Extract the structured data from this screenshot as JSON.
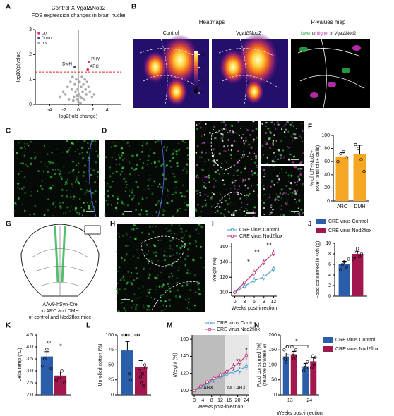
{
  "figure": {
    "panel_letters": [
      "A",
      "B",
      "C",
      "D",
      "E",
      "F",
      "G",
      "H",
      "I",
      "J",
      "K",
      "L",
      "M",
      "N"
    ],
    "heatmaps": {
      "title": "Heatmaps",
      "control": "Control",
      "mutant": "VgatΔNod2",
      "pmap_title": "P-values map",
      "pmap_legend": [
        "lower",
        " or ",
        "higher",
        " in VgatΔNod2"
      ],
      "colorbar_lim": [
        0,
        33
      ],
      "colorbar_ticks": [
        0,
        10,
        20,
        30
      ]
    },
    "images": [
      {
        "texts": [
          "Nod2GFP",
          "DMH"
        ]
      },
      {
        "texts": [
          "Nod2GFP",
          "ARC"
        ]
      },
      {
        "texts": [
          "DMH",
          "ARC",
          "VgattdT;Nod2GFP"
        ]
      },
      {
        "texts": [
          "DMH",
          "ARC",
          "ROSAYFP"
        ]
      }
    ],
    "injection_caption": [
      "AAV9-hSyn-Cre",
      "in ARC and DMH",
      "of control and Nod2flox mice"
    ]
  },
  "chart_data": [
    {
      "type": "scatter",
      "title": "Control X VgatΔNod2",
      "subtitle": "FOS expression changes in brain nuclei",
      "xlabel": "log2(fold change)",
      "ylabel": "-log10(p(value)",
      "xlim": [
        -6,
        6
      ],
      "ylim": [
        0,
        3
      ],
      "xticks": [
        -4,
        -2,
        0,
        2,
        4
      ],
      "yticks": [
        0,
        1,
        2,
        3
      ],
      "threshold": 1.3,
      "series": [
        {
          "name": "Up",
          "color": "#e0306e",
          "x": [
            1.5,
            1.3
          ],
          "y": [
            1.7,
            1.4
          ],
          "point_labels": [
            "PHY",
            "ARC"
          ]
        },
        {
          "name": "Down",
          "color": "#3a4aa6",
          "x": [
            -0.5
          ],
          "y": [
            1.5
          ],
          "point_labels": [
            "DMH"
          ]
        },
        {
          "name": "n.s.",
          "color": "#a8a8a8",
          "x": [
            -2.6,
            -2.1,
            -1.8,
            -1.5,
            -1.3,
            -1.1,
            -0.9,
            -0.8,
            -0.6,
            -0.5,
            -0.4,
            -0.3,
            -0.2,
            -0.1,
            0,
            0.1,
            0.2,
            0.3,
            0.4,
            0.5,
            0.6,
            0.7,
            0.8,
            0.9,
            1,
            1.1,
            1.2,
            1.4,
            1.6,
            1.9,
            2.2,
            -0.7,
            0.3,
            -0.2,
            0.5
          ],
          "y": [
            0.3,
            0.5,
            0.4,
            0.7,
            0.2,
            0.9,
            0.6,
            1.1,
            0.3,
            0.8,
            0.5,
            1.0,
            0.2,
            0.6,
            0.1,
            0.4,
            0.9,
            0.3,
            0.7,
            1.1,
            0.5,
            0.8,
            0.2,
            1.0,
            0.6,
            0.4,
            0.9,
            0.7,
            0.5,
            0.3,
            0.4,
            0.15,
            0.05,
            0.35,
            0.25
          ]
        }
      ]
    },
    {
      "type": "bar",
      "ylabel": "% of tdT+Nod2+",
      "ylabel2": "(over total tdT+ cells)",
      "categories": [
        "ARC",
        "DMH"
      ],
      "values": [
        68,
        71
      ],
      "errors": [
        6,
        14
      ],
      "points": [
        [
          60,
          72,
          75,
          66
        ],
        [
          86,
          80,
          63,
          45
        ]
      ],
      "color": "#f5a623",
      "ylim": [
        0,
        100
      ],
      "yticks": [
        0,
        20,
        40,
        60,
        80,
        100
      ]
    },
    {
      "type": "line",
      "xlabel": "Weeks post-injection",
      "ylabel": "Weight (%)",
      "x": [
        0,
        3,
        6,
        9,
        12
      ],
      "xlim": [
        -1,
        13
      ],
      "ylim": [
        95,
        165
      ],
      "xticks": [
        0,
        3,
        6,
        9,
        12
      ],
      "yticks": [
        100,
        120,
        140,
        160
      ],
      "series": [
        {
          "name": "CRE virus Control",
          "color": "#4f9bd0",
          "values": [
            100,
            108,
            116,
            120,
            131
          ],
          "errors": [
            1,
            3,
            4,
            4,
            4
          ]
        },
        {
          "name": "CRE virus Nod2flox",
          "color": "#c0397a",
          "values": [
            100,
            113,
            126,
            140,
            152
          ],
          "errors": [
            1,
            2,
            4,
            4,
            4
          ]
        }
      ],
      "annotations": [
        "*",
        "**",
        "**"
      ]
    },
    {
      "type": "bar",
      "ylabel": "Food consumed in 40h (g)",
      "ylim": [
        0,
        10
      ],
      "yticks": [
        0,
        2,
        4,
        6,
        8,
        10
      ],
      "series": [
        {
          "name": "CRE virus Control",
          "color": "#2a5ea8",
          "values": [
            6
          ],
          "errors": [
            0.6
          ],
          "points": [
            [
              5,
              6,
              6.5,
              5.5,
              7
            ]
          ]
        },
        {
          "name": "CRE virus Nod2flox",
          "color": "#a3174f",
          "values": [
            8
          ],
          "errors": [
            0.5
          ],
          "points": [
            [
              7,
              8.5,
              9,
              7.5,
              8
            ]
          ]
        }
      ],
      "annotations": [
        "*"
      ]
    },
    {
      "type": "bar",
      "ylabel": "Delta temp (°C)",
      "ylim": [
        2.0,
        4.5
      ],
      "yticks": [
        {
          "value": 2,
          "label": "2.0"
        },
        2.5,
        {
          "value": 3,
          "label": "3.0"
        },
        3.5,
        {
          "value": 4,
          "label": "4.0"
        },
        4.5
      ],
      "series": [
        {
          "color": "#2a5ea8",
          "values": [
            3.6
          ],
          "errors": [
            0.2
          ],
          "points": [
            [
              3.2,
              3.5,
              3.9,
              4.2,
              3.1
            ]
          ]
        },
        {
          "color": "#a3174f",
          "values": [
            2.8
          ],
          "errors": [
            0.15
          ],
          "points": [
            [
              2.6,
              2.7,
              3.0,
              2.5
            ]
          ]
        }
      ],
      "annotations": [
        "*"
      ]
    },
    {
      "type": "bar",
      "ylabel": "Unrolled cotton (%)",
      "ylim": [
        0,
        100
      ],
      "yticks": [
        0,
        25,
        50,
        75,
        100
      ],
      "series": [
        {
          "color": "#2a5ea8",
          "values": [
            74
          ],
          "errors": [
            15
          ],
          "points": [
            [
              100,
              100,
              100,
              100,
              100,
              35,
              25,
              100
            ]
          ]
        },
        {
          "color": "#a3174f",
          "values": [
            47
          ],
          "errors": [
            10
          ],
          "points": [
            [
              100,
              100,
              100,
              40,
              30,
              20,
              35,
              15,
              50,
              45
            ]
          ]
        }
      ]
    },
    {
      "type": "line",
      "xlabel": "Weeks post-injection",
      "ylabel": "Weight (%)",
      "x": [
        0,
        3,
        6,
        9,
        12,
        15,
        18,
        21,
        24
      ],
      "xlim": [
        -1,
        25
      ],
      "ylim": [
        95,
        165
      ],
      "xticks": [
        0,
        4,
        8,
        12,
        16,
        20,
        24
      ],
      "yticks": [
        100,
        120,
        140,
        160
      ],
      "regions": [
        {
          "label": "ABX",
          "from": -1,
          "to": 14,
          "color": "#bdbdbd"
        },
        {
          "label": "NO ABX",
          "from": 14,
          "to": 25,
          "color": "#e6e6e6"
        }
      ],
      "series": [
        {
          "name": "CRE virus Control",
          "color": "#4f9bd0",
          "values": [
            100,
            104,
            108,
            112,
            116,
            119,
            122,
            124,
            128
          ],
          "errors": [
            1,
            2,
            2,
            3,
            3,
            3,
            3,
            4,
            4
          ]
        },
        {
          "name": "CRE virus Nod2flox",
          "color": "#c0397a",
          "values": [
            100,
            105,
            110,
            114,
            118,
            122,
            128,
            133,
            141
          ],
          "errors": [
            1,
            2,
            2,
            3,
            3,
            3,
            4,
            4,
            5
          ]
        }
      ],
      "annotations": [
        "*",
        "*"
      ]
    },
    {
      "type": "bar",
      "xlabel": "Weeks post-injection",
      "ylabel": "Food consumed (%)",
      "ylabel2": "(relative to week 9)",
      "categories": [
        "13",
        "24"
      ],
      "ylim": [
        0,
        200
      ],
      "yticks": [
        0,
        50,
        100,
        150,
        200
      ],
      "series": [
        {
          "name": "CRE virus Control",
          "color": "#2a5ea8",
          "values": [
            128,
            95
          ],
          "errors": [
            12,
            10
          ],
          "points": [
            [
              150,
              120,
              110,
              160,
              130
            ],
            [
              80,
              100,
              90,
              110
            ]
          ]
        },
        {
          "name": "CRE virus Nod2flox",
          "color": "#a3174f",
          "values": [
            135,
            112
          ],
          "errors": [
            10,
            12
          ],
          "points": [
            [
              160,
              140,
              120,
              130,
              150
            ],
            [
              90,
              130,
              100,
              125
            ]
          ]
        }
      ],
      "annotations": [
        "*"
      ]
    }
  ]
}
